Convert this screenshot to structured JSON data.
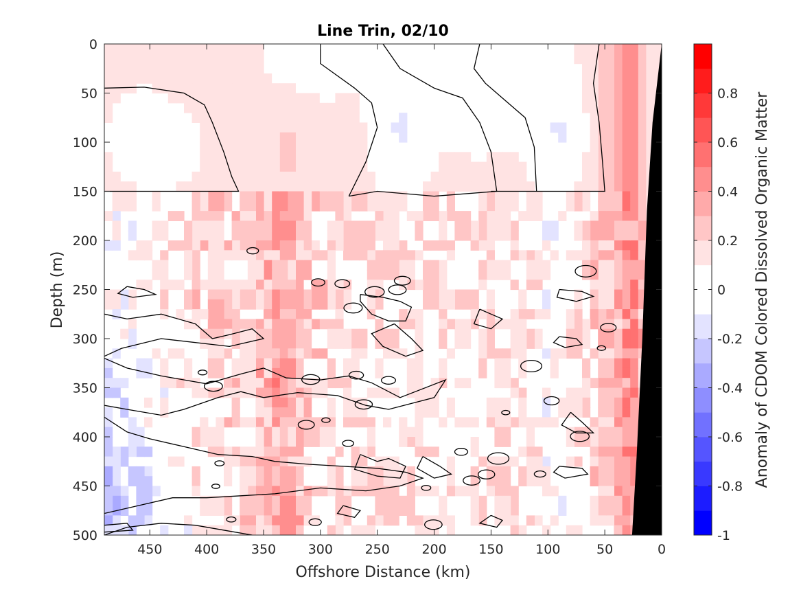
{
  "chart_data": {
    "type": "heatmap",
    "title": "Line Trin, 02/10",
    "xlabel": "Offshore Distance (km)",
    "ylabel": "Depth (m)",
    "xlim": [
      490,
      0
    ],
    "ylim": [
      500,
      0
    ],
    "x_ticks": [
      450,
      400,
      350,
      300,
      250,
      200,
      150,
      100,
      50,
      0
    ],
    "y_ticks": [
      0,
      50,
      100,
      150,
      200,
      250,
      300,
      350,
      400,
      450,
      500
    ],
    "colorbar": {
      "label": "Anomaly of CDOM Colored Dissolved Organic Matter",
      "range": [
        -1,
        1
      ],
      "levels": [
        -1,
        -0.9,
        -0.8,
        -0.7,
        -0.6,
        -0.5,
        -0.4,
        -0.3,
        -0.2,
        -0.1,
        0,
        0.1,
        0.2,
        0.3,
        0.4,
        0.5,
        0.6,
        0.7,
        0.8,
        0.9,
        1
      ],
      "ticks": [
        0.8,
        0.6,
        0.4,
        0.2,
        0,
        -0.2,
        -0.4,
        -0.6,
        -0.8,
        -1
      ],
      "tick_labels": [
        "0.8",
        "0.6",
        "0.4",
        "0.2",
        "0",
        "-0.2",
        "-0.4",
        "-0.6",
        "-0.8",
        "-1"
      ]
    },
    "bathymetry_mask": {
      "color": "#000000",
      "boundary": [
        [
          0,
          0
        ],
        [
          8,
          80
        ],
        [
          13,
          170
        ],
        [
          17,
          300
        ],
        [
          22,
          420
        ],
        [
          26,
          500
        ]
      ]
    },
    "field_summary": [
      {
        "depth_range": [
          0,
          155
        ],
        "x_range": [
          490,
          50
        ],
        "anomaly": 0.1
      },
      {
        "depth_range": [
          50,
          150
        ],
        "x_range": [
          470,
          420
        ],
        "anomaly": -0.05
      },
      {
        "depth_range": [
          40,
          140
        ],
        "x_range": [
          250,
          210
        ],
        "anomaly": -0.05
      },
      {
        "depth_range": [
          40,
          140
        ],
        "x_range": [
          110,
          70
        ],
        "anomaly": -0.05
      },
      {
        "depth_range": [
          155,
          500
        ],
        "x_range": [
          360,
          310
        ],
        "anomaly": 0.3
      },
      {
        "depth_range": [
          260,
          500
        ],
        "x_range": [
          490,
          400
        ],
        "anomaly": -0.2
      },
      {
        "depth_range": [
          0,
          500
        ],
        "x_range": [
          50,
          20
        ],
        "anomaly": 0.4
      }
    ],
    "colors": {
      "negative_max": "#0000ff",
      "zero": "#ffffff",
      "positive_max": "#ff0000",
      "contour_line": "#000000"
    }
  }
}
